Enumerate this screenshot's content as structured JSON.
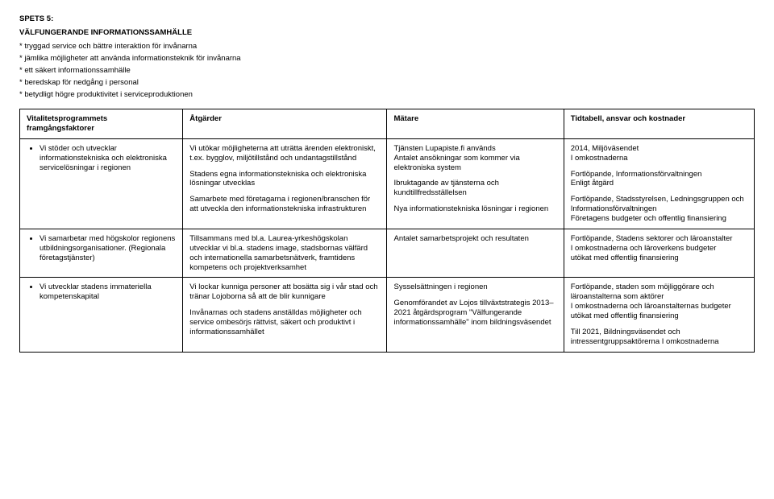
{
  "spets_label": "SPETS 5:",
  "title": "VÄLFUNGERANDE INFORMATIONSSAMHÄLLE",
  "bullets": [
    "* tryggad service och bättre interaktion för invånarna",
    "* jämlika möjligheter att använda informationsteknik för invånarna",
    "* ett säkert informationssamhälle",
    "* beredskap för nedgång i personal",
    "* betydligt högre produktivitet i serviceproduktionen"
  ],
  "table": {
    "headers": {
      "col1_line1": "Vitalitetsprogrammets",
      "col1_line2": "framgångsfaktorer",
      "col2": "Åtgärder",
      "col3": "Mätare",
      "col4": "Tidtabell, ansvar och kostnader"
    },
    "rows": [
      {
        "factor": "Vi stöder och utvecklar informationstekniska och elektroniska servicelösningar i regionen",
        "actions": {
          "p1": "Vi utökar möjligheterna att uträtta ärenden elektroniskt, t.ex. bygglov, miljötillstånd och undantagstillstånd",
          "p2": "Stadens egna informationstekniska och elektroniska lösningar utvecklas",
          "p3": "Samarbete med företagarna i regionen/branschen för att utveckla den informationstekniska infrastrukturen"
        },
        "measures": {
          "p1": "Tjänsten Lupapiste.fi används\nAntalet ansökningar som kommer via elektroniska system",
          "p2": "Ibruktagande av tjänsterna och kundtillfredsställelsen",
          "p3": "Nya informationstekniska lösningar i regionen"
        },
        "timeline": {
          "p1": "2014, Miljöväsendet\nI omkostnaderna",
          "p2": "Fortlöpande, Informationsförvaltningen\nEnligt åtgärd",
          "p3": "Fortlöpande, Stadsstyrelsen, Ledningsgruppen och Informationsförvaltningen\nFöretagens budgeter och offentlig finansiering"
        }
      },
      {
        "factor": "Vi samarbetar med högskolor regionens utbildningsorganisationer. (Regionala företagstjänster)",
        "actions": {
          "p1": "Tillsammans med bl.a. Laurea-yrkeshögskolan utvecklar vi bl.a. stadens image, stadsbornas välfärd och internationella samarbetsnätverk, framtidens kompetens och projektverksamhet"
        },
        "measures": {
          "p1": "Antalet samarbetsprojekt och resultaten"
        },
        "timeline": {
          "p1": "Fortlöpande, Stadens sektorer och läroanstalter\nI omkostnaderna och läroverkens budgeter\nutökat med offentlig finansiering"
        }
      },
      {
        "factor": "Vi utvecklar stadens immateriella kompetenskapital",
        "actions": {
          "p1": "Vi lockar kunniga personer att bosätta sig i vår stad och tränar Lojoborna så att de blir kunnigare",
          "p2": "Invånarnas och stadens anställdas möjligheter och service ombesörjs rättvist, säkert och produktivt i informationssamhället"
        },
        "measures": {
          "p1": "Sysselsättningen i regionen",
          "p2": "Genomförandet av Lojos tillväxtstrategis 2013–2021 åtgärdsprogram \"Välfungerande informationssamhälle\" inom bildningsväsendet"
        },
        "timeline": {
          "p1": "Fortlöpande, staden som möjliggörare och läroanstalterna som aktörer\nI omkostnaderna och läroanstalternas budgeter\nutökat med offentlig finansiering",
          "p2": "Till 2021, Bildningsväsendet och intressentgruppsaktörerna I omkostnaderna"
        }
      }
    ]
  }
}
